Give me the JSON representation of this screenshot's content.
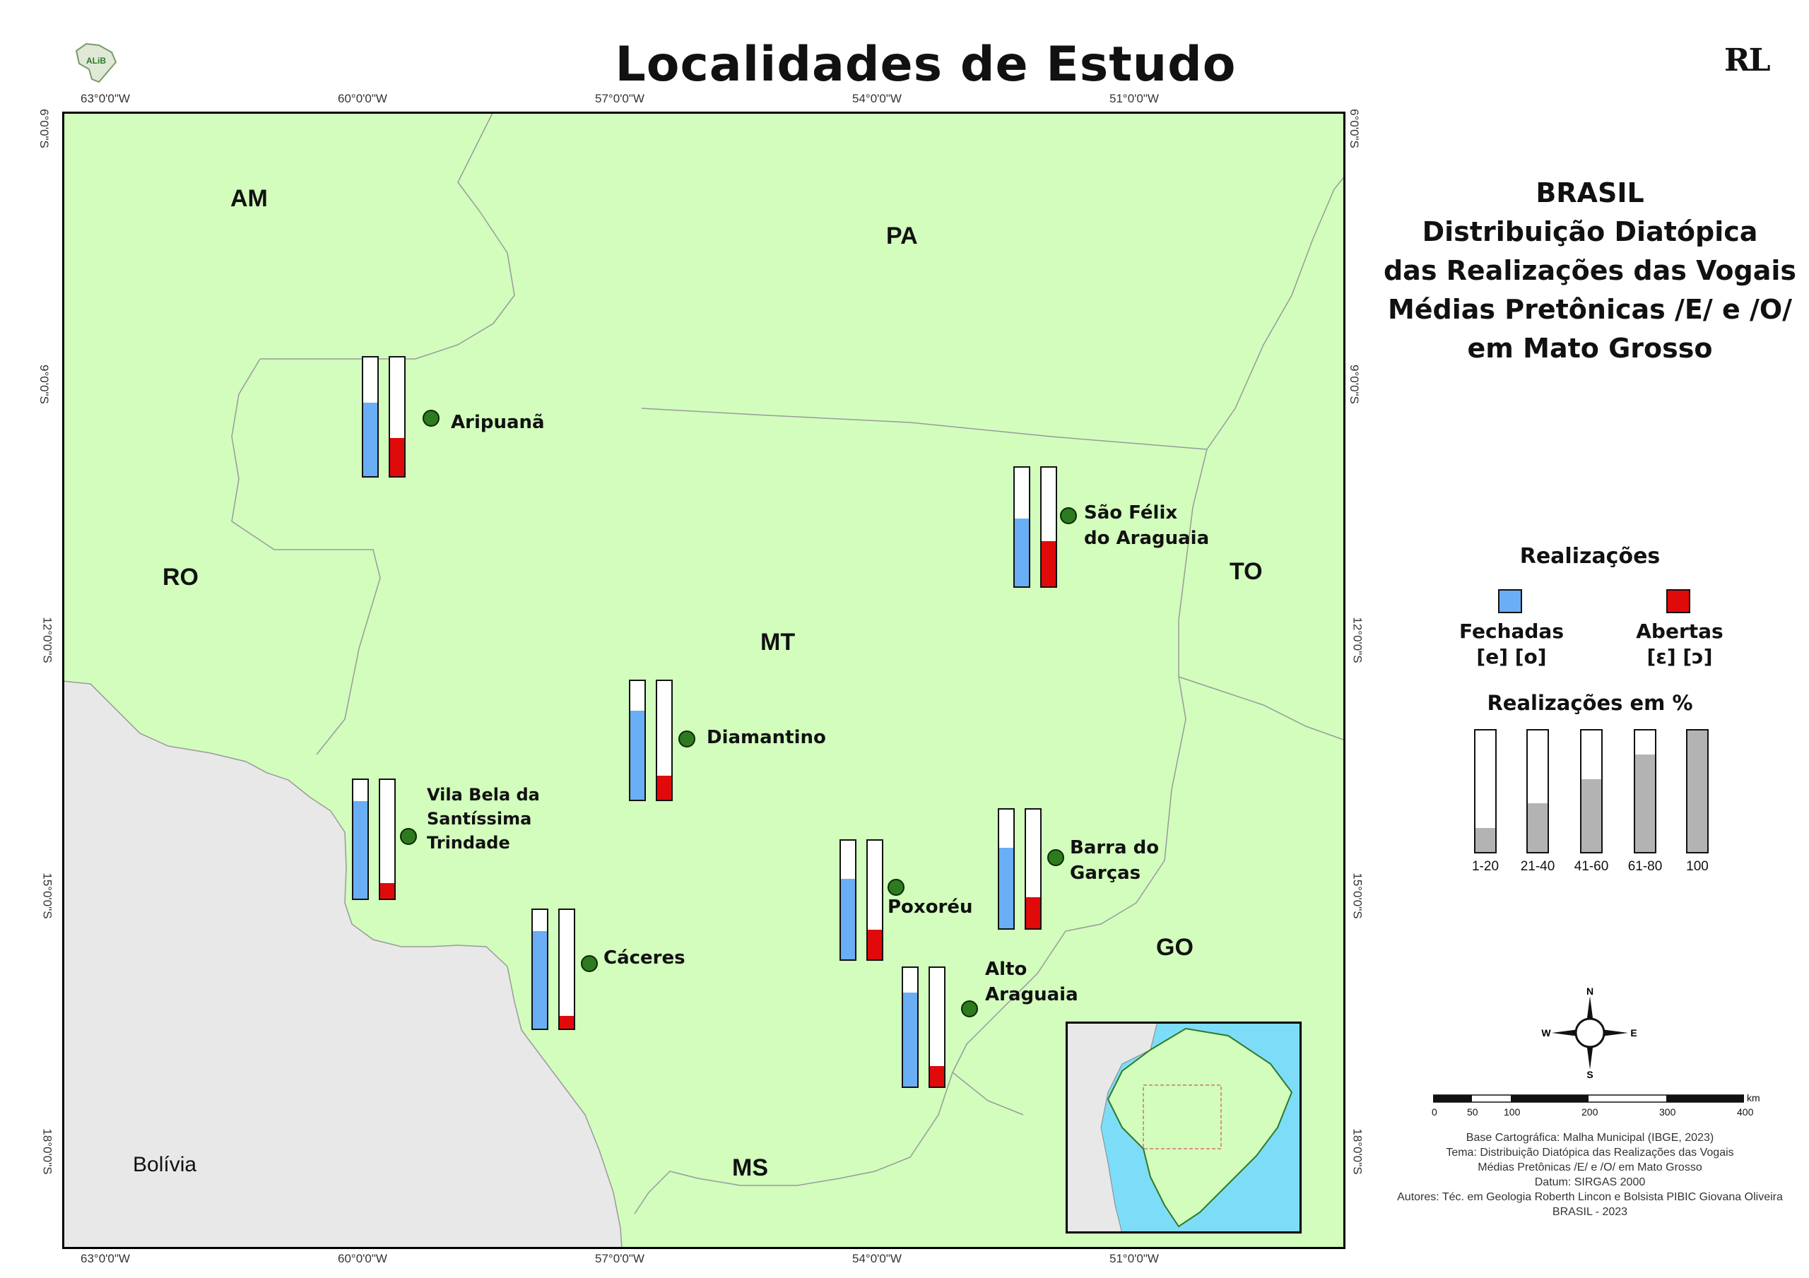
{
  "title": "Localidades de Estudo",
  "logo_left_text": "ALiB",
  "logo_right_text": "RL",
  "ticks_top": [
    "63°0'0\"W",
    "60°0'0\"W",
    "57°0'0\"W",
    "54°0'0\"W",
    "51°0'0\"W"
  ],
  "ticks_bottom": [
    "63°0'0\"W",
    "60°0'0\"W",
    "57°0'0\"W",
    "54°0'0\"W",
    "51°0'0\"W"
  ],
  "ticks_left": [
    "6°0'0\"S",
    "9°0'0\"S",
    "12°0'0\"S",
    "15°0'0\"S",
    "18°0'0\"S"
  ],
  "ticks_right": [
    "6°0'0\"S",
    "9°0'0\"S",
    "12°0'0\"S",
    "15°0'0\"S",
    "18°0'0\"S"
  ],
  "states": [
    "AM",
    "PA",
    "RO",
    "TO",
    "MT",
    "GO",
    "MS"
  ],
  "country": "Bolívia",
  "localities": [
    {
      "name_lines": [
        "Aripuanã"
      ],
      "fechadas": 62,
      "abertas": 32
    },
    {
      "name_lines": [
        "São Félix",
        "do Araguaia"
      ],
      "fechadas": 57,
      "abertas": 38
    },
    {
      "name_lines": [
        "Diamantino"
      ],
      "fechadas": 75,
      "abertas": 20
    },
    {
      "name_lines": [
        "Vila Bela da",
        "Santíssima",
        "Trindade"
      ],
      "fechadas": 82,
      "abertas": 13
    },
    {
      "name_lines": [
        "Poxoréu"
      ],
      "fechadas": 68,
      "abertas": 25
    },
    {
      "name_lines": [
        "Barra do",
        "Garças"
      ],
      "fechadas": 68,
      "abertas": 26
    },
    {
      "name_lines": [
        "Cáceres"
      ],
      "fechadas": 82,
      "abertas": 11
    },
    {
      "name_lines": [
        "Alto",
        "Araguaia"
      ],
      "fechadas": 79,
      "abertas": 17
    }
  ],
  "side_title": [
    "BRASIL",
    "Distribuição Diatópica",
    "das Realizações das Vogais",
    "Médias Pretônicas /E/ e /O/",
    "em Mato Grosso"
  ],
  "legend": {
    "title": "Realizações",
    "closed": {
      "label": "Fechadas",
      "ipa": "[e] [o]",
      "color": "#6aaef5"
    },
    "open": {
      "label": "Abertas",
      "ipa": "[ɛ] [ɔ]",
      "color": "#e00a0a"
    }
  },
  "pct_legend": {
    "title": "Realizações em %",
    "items": [
      {
        "label": "1-20",
        "value": 20
      },
      {
        "label": "21-40",
        "value": 40
      },
      {
        "label": "41-60",
        "value": 60
      },
      {
        "label": "61-80",
        "value": 80
      },
      {
        "label": "100",
        "value": 100
      }
    ]
  },
  "compass": {
    "n": "N",
    "s": "S",
    "e": "E",
    "w": "W"
  },
  "scale": {
    "labels": [
      "0",
      "50",
      "100",
      "200",
      "300",
      "400"
    ],
    "unit": "km"
  },
  "credits": [
    "Base Cartográfica: Malha Municipal (IBGE, 2023)",
    "Tema: Distribuição Diatópica das Realizações das Vogais",
    "Médias Pretônicas /E/ e /O/ em Mato Grosso",
    "Datum: SIRGAS 2000",
    "Autores: Téc. em Geologia Roberth Lincon e Bolsista PIBIC Giovana Oliveira",
    "BRASIL - 2023"
  ]
}
